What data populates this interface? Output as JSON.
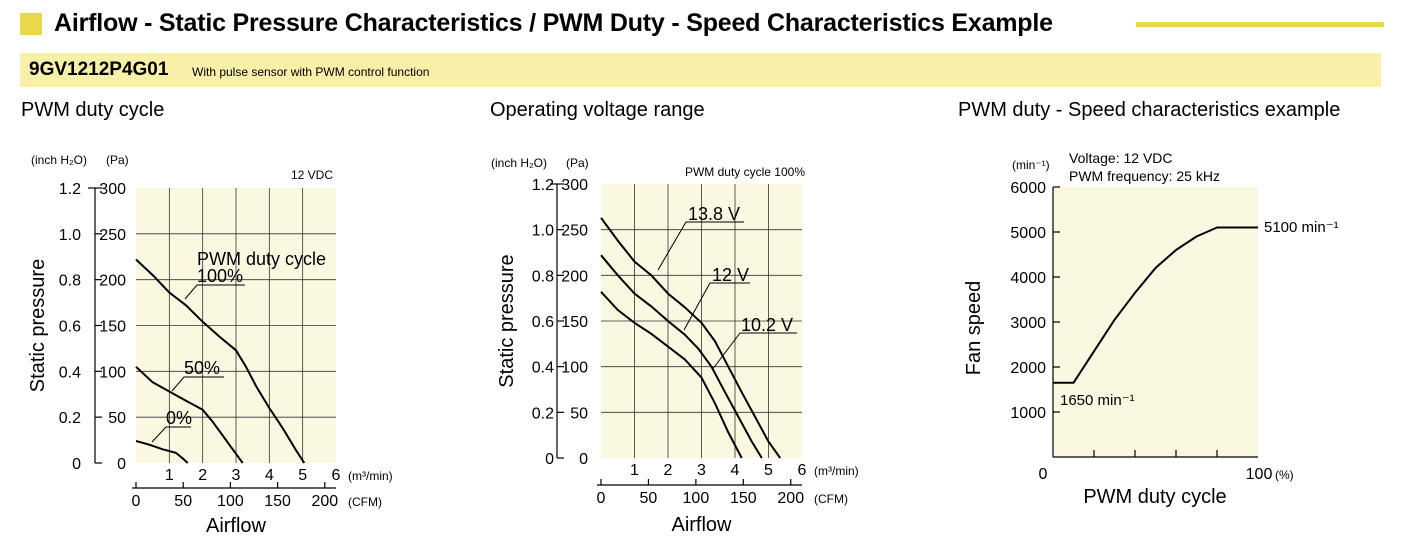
{
  "header": {
    "title": "Airflow - Static Pressure Characteristics / PWM Duty - Speed Characteristics Example"
  },
  "model": {
    "name": "9GV1212P4G01",
    "description": "With pulse sensor with PWM control function"
  },
  "colors": {
    "accent": "#e8d84a",
    "band": "#f8efa8",
    "plot_bg": "#fbf8e1",
    "ink": "#000000"
  },
  "chart_data": [
    {
      "type": "line",
      "title": "PWM duty cycle",
      "note": "12 VDC",
      "ylabel": "Static pressure",
      "xlabel": "Airflow",
      "y_units_inch": "(inch H₂O)",
      "y_units_pa": "(Pa)",
      "x_units_m3": "(m³/min)",
      "x_units_cfm": "(CFM)",
      "xlim": [
        0,
        6
      ],
      "ylim_pa": [
        0,
        300
      ],
      "x_ticks": [
        "1",
        "2",
        "3",
        "4",
        "5",
        "6"
      ],
      "cfm_ticks": [
        "0",
        "50",
        "100",
        "150",
        "200"
      ],
      "pa_ticks": [
        "0",
        "50",
        "100",
        "150",
        "200",
        "250",
        "300"
      ],
      "inch_ticks": [
        "0",
        "0.2",
        "0.4",
        "0.6",
        "0.8",
        "1.0",
        "1.2"
      ],
      "legend_title": "PWM duty cycle",
      "series": [
        {
          "name": "100%",
          "x": [
            0,
            0.5,
            1.0,
            1.5,
            2.0,
            2.5,
            3.0,
            3.3,
            3.6,
            4.0,
            4.4,
            4.8,
            5.05
          ],
          "y": [
            222,
            205,
            186,
            172,
            154,
            138,
            123,
            105,
            84,
            60,
            38,
            14,
            0
          ]
        },
        {
          "name": "50%",
          "x": [
            0,
            0.5,
            1.0,
            1.5,
            2.0,
            2.3,
            2.6,
            2.8,
            3.0,
            3.2
          ],
          "y": [
            105,
            88,
            78,
            68,
            58,
            45,
            30,
            20,
            10,
            0
          ]
        },
        {
          "name": "0%",
          "x": [
            0,
            0.4,
            0.8,
            1.2,
            1.4,
            1.55
          ],
          "y": [
            24,
            20,
            15,
            11,
            5,
            0
          ]
        }
      ]
    },
    {
      "type": "line",
      "title": "Operating voltage range",
      "note": "PWM duty cycle 100%",
      "ylabel": "Static pressure",
      "xlabel": "Airflow",
      "y_units_inch": "(inch H₂O)",
      "y_units_pa": "(Pa)",
      "x_units_m3": "(m³/min)",
      "x_units_cfm": "(CFM)",
      "xlim": [
        0,
        6
      ],
      "ylim_pa": [
        0,
        300
      ],
      "x_ticks": [
        "1",
        "2",
        "3",
        "4",
        "5",
        "6"
      ],
      "cfm_ticks": [
        "0",
        "50",
        "100",
        "150",
        "200"
      ],
      "pa_ticks": [
        "0",
        "50",
        "100",
        "150",
        "200",
        "250",
        "300"
      ],
      "inch_ticks": [
        "0",
        "0.2",
        "0.4",
        "0.6",
        "0.8",
        "1.0",
        "1.2"
      ],
      "series": [
        {
          "name": "13.8 V",
          "x": [
            0,
            0.5,
            1.0,
            1.5,
            2.0,
            2.5,
            3.0,
            3.4,
            3.8,
            4.2,
            4.6,
            5.0,
            5.35
          ],
          "y": [
            263,
            238,
            215,
            200,
            180,
            165,
            148,
            128,
            100,
            72,
            45,
            18,
            0
          ]
        },
        {
          "name": "12 V",
          "x": [
            0,
            0.5,
            1.0,
            1.5,
            2.0,
            2.5,
            2.9,
            3.3,
            3.7,
            4.1,
            4.5,
            4.8
          ],
          "y": [
            222,
            200,
            180,
            166,
            150,
            135,
            120,
            100,
            72,
            45,
            18,
            0
          ]
        },
        {
          "name": "10.2 V",
          "x": [
            0,
            0.5,
            1.0,
            1.5,
            2.0,
            2.5,
            3.0,
            3.4,
            3.8,
            4.2
          ],
          "y": [
            182,
            162,
            148,
            136,
            122,
            108,
            88,
            60,
            28,
            0
          ]
        }
      ]
    },
    {
      "type": "line",
      "title": "PWM duty - Speed characteristics example",
      "note_lines": [
        "Voltage: 12 VDC",
        "PWM frequency: 25 kHz"
      ],
      "ylabel": "Fan speed",
      "xlabel": "PWM duty cycle",
      "y_units": "(min⁻¹)",
      "x_units": "(%)",
      "xlim": [
        0,
        100
      ],
      "ylim": [
        0,
        6000
      ],
      "y_ticks": [
        "1000",
        "2000",
        "3000",
        "4000",
        "5000",
        "6000"
      ],
      "x_tick_labels": [
        "0",
        "100"
      ],
      "annotations": [
        "5100 min⁻¹",
        "1650 min⁻¹"
      ],
      "series": [
        {
          "x": [
            0,
            10,
            20,
            30,
            40,
            50,
            60,
            70,
            80,
            86,
            90,
            100
          ],
          "y": [
            1650,
            1650,
            2350,
            3050,
            3650,
            4200,
            4600,
            4900,
            5100,
            5100,
            5100,
            5100
          ]
        }
      ]
    }
  ]
}
